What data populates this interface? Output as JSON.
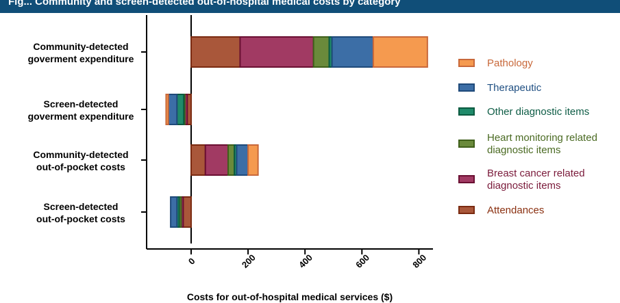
{
  "banner": {
    "text": "Fig... Community and screen-detected out-of-hospital medical costs by category"
  },
  "chart_data": {
    "type": "bar",
    "orientation": "horizontal",
    "stacked": true,
    "title": "",
    "xlabel": "Costs for out-of-hospital medical services ($)",
    "ylabel": "",
    "xlim": [
      -200,
      900
    ],
    "xticks": [
      0,
      200,
      400,
      600,
      800
    ],
    "grid": false,
    "legend_position": "right",
    "categories": [
      "Community-detected\ngoverment expenditure",
      "Screen-detected\ngoverment expenditure",
      "Community-detected\nout-of-pocket costs",
      "Screen-detected\nout-of-pocket costs"
    ],
    "series": [
      {
        "name": "Attendances",
        "fill": "#a9573a",
        "stroke": "#7a2a10",
        "text_color": "#8a3010",
        "values": [
          172,
          -14,
          50,
          -28
        ]
      },
      {
        "name": "Breast cancer related\ndiagnostic items",
        "fill": "#a13a63",
        "stroke": "#6a0f32",
        "text_color": "#7a1a3a",
        "values": [
          258,
          -8,
          80,
          -7
        ]
      },
      {
        "name": "Heart monitoring related\ndiagnostic items",
        "fill": "#6a8a3b",
        "stroke": "#3f5f1a",
        "text_color": "#4a6a22",
        "values": [
          55,
          -4,
          22,
          -7
        ]
      },
      {
        "name": "Other diagnostic items",
        "fill": "#1f8a6a",
        "stroke": "#0b5a40",
        "text_color": "#0d5c45",
        "values": [
          10,
          -24,
          8,
          -8
        ]
      },
      {
        "name": "Therapeutic",
        "fill": "#3c6ea6",
        "stroke": "#1f4a7a",
        "text_color": "#1f4f82",
        "values": [
          145,
          -30,
          40,
          -22
        ]
      },
      {
        "name": "Pathology",
        "fill": "#f59a4f",
        "stroke": "#c8683a",
        "text_color": "#c8683a",
        "values": [
          190,
          -8,
          35,
          0
        ]
      }
    ]
  }
}
